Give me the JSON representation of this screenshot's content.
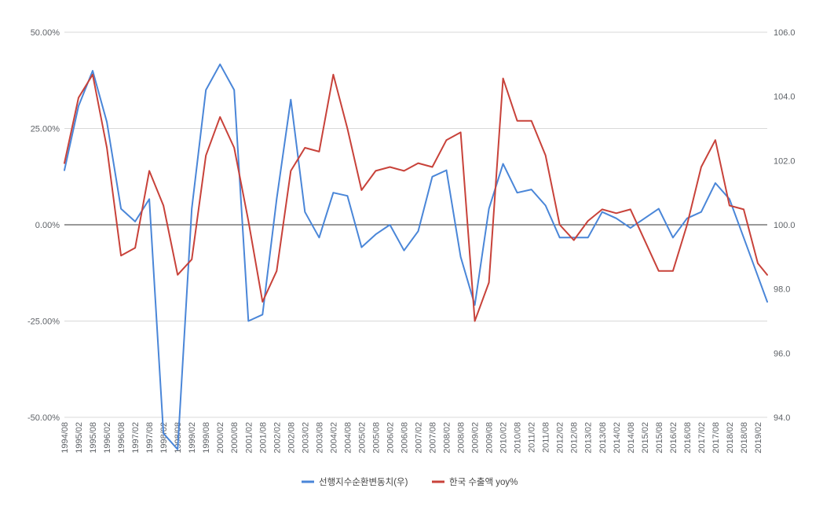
{
  "chart_data": {
    "type": "line",
    "title": "",
    "left_axis": {
      "ticks": [
        "50.00%",
        "25.00%",
        "0.00%",
        "-25.00%",
        "-50.00%"
      ],
      "ylim": [
        -50,
        50
      ],
      "unit": "percent"
    },
    "right_axis": {
      "ticks": [
        "106.0",
        "104.0",
        "102.0",
        "100.0",
        "98.0",
        "96.0",
        "94.0"
      ],
      "ylim": [
        94,
        106
      ]
    },
    "x_ticks": [
      "1994/08",
      "1995/02",
      "1995/08",
      "1996/02",
      "1996/08",
      "1997/02",
      "1997/08",
      "1998/02",
      "1998/08",
      "1999/02",
      "1999/08",
      "2000/02",
      "2000/08",
      "2001/02",
      "2001/08",
      "2002/02",
      "2002/08",
      "2003/02",
      "2003/08",
      "2004/02",
      "2004/08",
      "2005/02",
      "2005/08",
      "2006/02",
      "2006/08",
      "2007/02",
      "2007/08",
      "2008/02",
      "2008/08",
      "2009/02",
      "2009/08",
      "2010/02",
      "2010/08",
      "2011/02",
      "2011/08",
      "2012/02",
      "2012/08",
      "2013/02",
      "2013/08",
      "2014/02",
      "2014/08",
      "2015/02",
      "2015/08",
      "2016/02",
      "2016/08",
      "2017/02",
      "2017/08",
      "2018/02",
      "2018/08",
      "2019/02"
    ],
    "grid": true,
    "legend_position": "bottom",
    "series": [
      {
        "name": "선행지수순환변동치(우)",
        "axis": "right",
        "color": "#4a86d8",
        "points": [
          [
            "1994/08",
            101.7
          ],
          [
            "1995/02",
            103.7
          ],
          [
            "1995/08",
            104.8
          ],
          [
            "1996/02",
            103.2
          ],
          [
            "1996/08",
            100.5
          ],
          [
            "1997/02",
            100.1
          ],
          [
            "1997/08",
            100.8
          ],
          [
            "1998/02",
            93.5
          ],
          [
            "1998/08",
            93.0
          ],
          [
            "1999/02",
            100.5
          ],
          [
            "1999/08",
            104.2
          ],
          [
            "2000/02",
            105.0
          ],
          [
            "2000/08",
            104.2
          ],
          [
            "2001/02",
            97.0
          ],
          [
            "2001/08",
            97.2
          ],
          [
            "2002/02",
            100.8
          ],
          [
            "2002/08",
            103.9
          ],
          [
            "2003/02",
            100.4
          ],
          [
            "2003/08",
            99.6
          ],
          [
            "2004/02",
            101.0
          ],
          [
            "2004/08",
            100.9
          ],
          [
            "2005/02",
            99.3
          ],
          [
            "2005/08",
            99.7
          ],
          [
            "2006/02",
            100.0
          ],
          [
            "2006/08",
            99.2
          ],
          [
            "2007/02",
            99.8
          ],
          [
            "2007/08",
            101.5
          ],
          [
            "2008/02",
            101.7
          ],
          [
            "2008/08",
            99.0
          ],
          [
            "2009/02",
            97.5
          ],
          [
            "2009/08",
            100.5
          ],
          [
            "2010/02",
            101.9
          ],
          [
            "2010/08",
            101.0
          ],
          [
            "2011/02",
            101.1
          ],
          [
            "2011/08",
            100.6
          ],
          [
            "2012/02",
            99.6
          ],
          [
            "2012/08",
            99.6
          ],
          [
            "2013/02",
            99.6
          ],
          [
            "2013/08",
            100.4
          ],
          [
            "2014/02",
            100.2
          ],
          [
            "2014/08",
            99.9
          ],
          [
            "2015/02",
            100.2
          ],
          [
            "2015/08",
            100.5
          ],
          [
            "2016/02",
            99.6
          ],
          [
            "2016/08",
            100.2
          ],
          [
            "2017/02",
            100.4
          ],
          [
            "2017/08",
            101.3
          ],
          [
            "2018/02",
            100.8
          ],
          [
            "2018/08",
            99.6
          ],
          [
            "2019/02",
            98.4
          ],
          [
            "2019/06",
            97.6
          ]
        ]
      },
      {
        "name": "한국 수출액 yoy%",
        "axis": "left",
        "color": "#c8423a",
        "points": [
          [
            "1994/08",
            16
          ],
          [
            "1995/02",
            33
          ],
          [
            "1995/08",
            39
          ],
          [
            "1996/02",
            20
          ],
          [
            "1996/08",
            -8
          ],
          [
            "1997/02",
            -6
          ],
          [
            "1997/08",
            14
          ],
          [
            "1998/02",
            5
          ],
          [
            "1998/08",
            -13
          ],
          [
            "1999/02",
            -9
          ],
          [
            "1999/08",
            18
          ],
          [
            "2000/02",
            28
          ],
          [
            "2000/08",
            20
          ],
          [
            "2001/02",
            1
          ],
          [
            "2001/08",
            -20
          ],
          [
            "2002/02",
            -12
          ],
          [
            "2002/08",
            14
          ],
          [
            "2003/02",
            20
          ],
          [
            "2003/08",
            19
          ],
          [
            "2004/02",
            39
          ],
          [
            "2004/08",
            25
          ],
          [
            "2005/02",
            9
          ],
          [
            "2005/08",
            14
          ],
          [
            "2006/02",
            15
          ],
          [
            "2006/08",
            14
          ],
          [
            "2007/02",
            16
          ],
          [
            "2007/08",
            15
          ],
          [
            "2008/02",
            22
          ],
          [
            "2008/08",
            24
          ],
          [
            "2009/02",
            -25
          ],
          [
            "2009/08",
            -15
          ],
          [
            "2010/02",
            38
          ],
          [
            "2010/08",
            27
          ],
          [
            "2011/02",
            27
          ],
          [
            "2011/08",
            18
          ],
          [
            "2012/02",
            0
          ],
          [
            "2012/08",
            -4
          ],
          [
            "2013/02",
            1
          ],
          [
            "2013/08",
            4
          ],
          [
            "2014/02",
            3
          ],
          [
            "2014/08",
            4
          ],
          [
            "2015/02",
            -4
          ],
          [
            "2015/08",
            -12
          ],
          [
            "2016/02",
            -12
          ],
          [
            "2016/08",
            0
          ],
          [
            "2017/02",
            15
          ],
          [
            "2017/08",
            22
          ],
          [
            "2018/02",
            5
          ],
          [
            "2018/08",
            4
          ],
          [
            "2019/02",
            -10
          ],
          [
            "2019/06",
            -13
          ]
        ]
      }
    ]
  }
}
